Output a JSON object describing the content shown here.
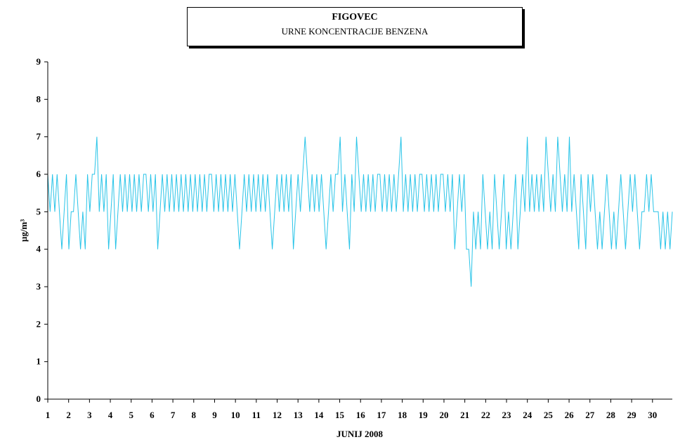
{
  "title": "FIGOVEC",
  "subtitle": "URNE KONCENTRACIJE BENZENA",
  "colors": {
    "series": "#29c4e8",
    "axis": "#000000"
  },
  "chart_data": {
    "type": "line",
    "xlabel": "JUNIJ 2008",
    "ylabel": "µg/m³",
    "ylim": [
      0,
      9
    ],
    "xlim": [
      1,
      30.95
    ],
    "yticks": [
      "0",
      "1",
      "2",
      "3",
      "4",
      "5",
      "6",
      "7",
      "8",
      "9"
    ],
    "xticks": [
      "1",
      "2",
      "3",
      "4",
      "5",
      "6",
      "7",
      "8",
      "9",
      "10",
      "11",
      "12",
      "13",
      "14",
      "15",
      "16",
      "17",
      "18",
      "19",
      "20",
      "21",
      "22",
      "23",
      "24",
      "25",
      "26",
      "27",
      "28",
      "29",
      "30"
    ],
    "grid": false,
    "series": [
      {
        "values": [
          6,
          5,
          6,
          5,
          6,
          5,
          4,
          5,
          6,
          4,
          5,
          5,
          6,
          5,
          4,
          5,
          4,
          6,
          5,
          6,
          6,
          7,
          5,
          6,
          5,
          6,
          4,
          5,
          6,
          4,
          5,
          6,
          5,
          6,
          5,
          6,
          5,
          6,
          5,
          6,
          5,
          6,
          6,
          5,
          6,
          5,
          6,
          4,
          5,
          6,
          5,
          6,
          5,
          6,
          5,
          6,
          5,
          6,
          5,
          6,
          5,
          6,
          5,
          6,
          5,
          6,
          5,
          6,
          5,
          6,
          6,
          5,
          6,
          5,
          6,
          5,
          6,
          5,
          6,
          5,
          6,
          5,
          4,
          5,
          6,
          5,
          6,
          5,
          6,
          5,
          6,
          5,
          6,
          5,
          6,
          5,
          4,
          5,
          6,
          5,
          6,
          5,
          6,
          5,
          6,
          4,
          5,
          6,
          5,
          6,
          7,
          6,
          5,
          6,
          5,
          6,
          5,
          6,
          5,
          4,
          5,
          6,
          5,
          6,
          6,
          7,
          5,
          6,
          5,
          4,
          6,
          5,
          7,
          6,
          5,
          6,
          5,
          6,
          5,
          6,
          5,
          6,
          6,
          5,
          6,
          5,
          6,
          5,
          6,
          5,
          6,
          7,
          5,
          6,
          5,
          6,
          5,
          6,
          5,
          6,
          6,
          5,
          6,
          5,
          6,
          5,
          6,
          5,
          6,
          6,
          5,
          6,
          5,
          6,
          4,
          5,
          6,
          5,
          6,
          4,
          4,
          3,
          5,
          4,
          5,
          4,
          6,
          5,
          4,
          5,
          4,
          6,
          5,
          4,
          5,
          6,
          4,
          5,
          4,
          5,
          6,
          4,
          5,
          6,
          5,
          7,
          5,
          6,
          5,
          6,
          5,
          6,
          5,
          7,
          6,
          5,
          6,
          5,
          7,
          6,
          5,
          6,
          5,
          7,
          5,
          6,
          5,
          4,
          6,
          5,
          4,
          6,
          5,
          6,
          5,
          4,
          5,
          4,
          5,
          6,
          5,
          4,
          5,
          4,
          5,
          6,
          5,
          4,
          5,
          6,
          5,
          6,
          5,
          4,
          5,
          5,
          6,
          5,
          6,
          5,
          5,
          5,
          4,
          5,
          4,
          5,
          4,
          5
        ]
      }
    ]
  }
}
